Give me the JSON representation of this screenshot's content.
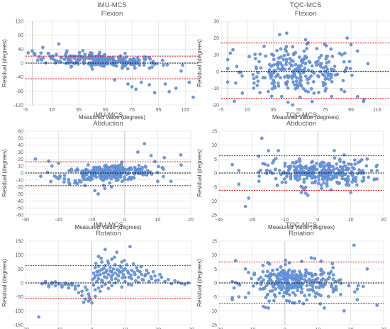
{
  "chart_data": [
    {
      "type": "scatter",
      "title": [
        "IMU-MCS",
        "Flexion"
      ],
      "xlabel": "Measured Value (degrees)",
      "ylabel": "Residual (degrees)",
      "xlim": [
        -5,
        125
      ],
      "ylim": [
        -120,
        120
      ],
      "xticks": [
        -5,
        15,
        35,
        55,
        75,
        95,
        115
      ],
      "yticks": [
        -120,
        -80,
        -40,
        0,
        40,
        80,
        120
      ],
      "mean_line": 0,
      "limits_of_agreement": [
        20,
        -45
      ],
      "cluster": {
        "x_center": 52,
        "x_spread": 22,
        "x_min": -3,
        "x_max": 122,
        "y_spread": 10,
        "y_slope": -0.18,
        "y_offset": 8,
        "n": 230
      },
      "points": [
        [
          0,
          35
        ],
        [
          2,
          25
        ],
        [
          5,
          18
        ],
        [
          8,
          45
        ],
        [
          20,
          55
        ],
        [
          12,
          28
        ],
        [
          25,
          22
        ],
        [
          45,
          28
        ],
        [
          72,
          -60
        ],
        [
          75,
          -68
        ],
        [
          78,
          -75
        ],
        [
          82,
          -55
        ],
        [
          88,
          -62
        ],
        [
          100,
          -60
        ],
        [
          103,
          -82
        ],
        [
          108,
          -72
        ],
        [
          118,
          -55
        ],
        [
          121,
          -98
        ],
        [
          62,
          -48
        ],
        [
          92,
          -85
        ]
      ]
    },
    {
      "type": "scatter",
      "title": [
        "TQC-MCS",
        "Flexion"
      ],
      "xlabel": "Measured Value (degrees)",
      "ylabel": "Residual (degrees)",
      "xlim": [
        -5,
        125
      ],
      "ylim": [
        -20,
        30
      ],
      "xticks": [
        -5,
        15,
        35,
        55,
        75,
        95,
        115
      ],
      "yticks": [
        -20,
        -10,
        0,
        10,
        20,
        30
      ],
      "mean_line": 0,
      "limits_of_agreement": [
        17,
        -16
      ],
      "cluster": {
        "x_center": 55,
        "x_spread": 22,
        "x_min": 0,
        "x_max": 112,
        "y_spread": 7,
        "y_slope": 0,
        "y_offset": 0,
        "n": 250
      },
      "points": [
        [
          2,
          11
        ],
        [
          4,
          13
        ],
        [
          7,
          3
        ],
        [
          40,
          22
        ],
        [
          92,
          20
        ],
        [
          95,
          16
        ],
        [
          60,
          19
        ],
        [
          28,
          15
        ],
        [
          80,
          -15
        ],
        [
          100,
          -15
        ],
        [
          105,
          -17
        ],
        [
          50,
          -20
        ],
        [
          65,
          -18
        ],
        [
          90,
          -12
        ],
        [
          20,
          -10
        ]
      ]
    },
    {
      "type": "scatter",
      "title": [
        "IMU-MCS",
        "Abduction"
      ],
      "xlabel": "Measured Value (degrees)",
      "ylabel": "Residual (degrees)",
      "xlim": [
        -30,
        20
      ],
      "ylim": [
        -60,
        60
      ],
      "xticks": [
        -30,
        -20,
        -10,
        0,
        10,
        20
      ],
      "yticks": [
        -60,
        -50,
        -40,
        -30,
        -20,
        -10,
        0,
        10,
        20,
        30,
        40,
        50,
        60
      ],
      "mean_line": 0,
      "limits_of_agreement": [
        16,
        -18
      ],
      "cluster": {
        "x_center": -5,
        "x_spread": 7,
        "x_min": -26,
        "x_max": 18,
        "y_spread": 6,
        "y_slope": 0.3,
        "y_offset": 0,
        "n": 260
      },
      "points": [
        [
          -27,
          20
        ],
        [
          -23,
          17
        ],
        [
          -20,
          14
        ],
        [
          -22,
          10
        ],
        [
          6,
          42
        ],
        [
          4,
          30
        ],
        [
          8,
          25
        ],
        [
          12,
          22
        ],
        [
          17,
          26
        ],
        [
          -8,
          -30
        ],
        [
          -6,
          -22
        ],
        [
          -12,
          -18
        ],
        [
          -4,
          -20
        ],
        [
          10,
          -12
        ],
        [
          14,
          -12
        ]
      ]
    },
    {
      "type": "scatter",
      "title": [
        "TQC-MCS",
        "Abduction"
      ],
      "xlabel": "Measured Value (degrees)",
      "ylabel": "Residual (degrees)",
      "xlim": [
        -30,
        20
      ],
      "ylim": [
        -15,
        15
      ],
      "xticks": [
        -30,
        -20,
        -10,
        0,
        10,
        20
      ],
      "yticks": [
        -15,
        -10,
        -5,
        0,
        5,
        10,
        15
      ],
      "mean_line": 0,
      "limits_of_agreement": [
        6.2,
        -6.2
      ],
      "cluster": {
        "x_center": 0,
        "x_spread": 8,
        "x_min": -26,
        "x_max": 18,
        "y_spread": 2.3,
        "y_slope": 0,
        "y_offset": 0,
        "n": 300
      },
      "points": [
        [
          -17,
          12.5
        ],
        [
          -22,
          -12
        ],
        [
          -21,
          -9
        ],
        [
          -26,
          3
        ],
        [
          -24,
          -4
        ],
        [
          -15,
          8
        ],
        [
          -12,
          8
        ],
        [
          -18,
          6
        ],
        [
          5,
          8
        ],
        [
          15,
          5
        ],
        [
          -5,
          -7
        ],
        [
          -3,
          -8
        ],
        [
          10,
          -7
        ],
        [
          8,
          6.5
        ]
      ]
    },
    {
      "type": "scatter",
      "title": [
        "IMU-MCS",
        "Rotation"
      ],
      "xlabel": "Measured Value (degrees)",
      "ylabel": "Residual (degrees)",
      "xlim": [
        -20,
        30
      ],
      "ylim": [
        -150,
        150
      ],
      "xticks": [
        -20,
        -10,
        0,
        10,
        20,
        30
      ],
      "yticks": [
        -150,
        -100,
        -50,
        0,
        50,
        100,
        150
      ],
      "mean_line": 0,
      "limits_of_agreement": [
        62,
        -55
      ],
      "points": [
        [
          -16,
          -122
        ],
        [
          -15,
          -3
        ],
        [
          -14,
          0
        ],
        [
          -13,
          -8
        ],
        [
          -12,
          -3
        ],
        [
          -11,
          -10
        ],
        [
          -10,
          -4
        ],
        [
          -9,
          -15
        ],
        [
          -8,
          -5
        ],
        [
          -7,
          -18
        ],
        [
          -6,
          -8
        ],
        [
          -5,
          -22
        ],
        [
          -4,
          -10
        ],
        [
          -3,
          -30
        ],
        [
          -2,
          -15
        ],
        [
          -1,
          -40
        ],
        [
          -0.5,
          -60
        ],
        [
          -2,
          -58
        ],
        [
          -1,
          -65
        ],
        [
          0,
          -72
        ],
        [
          -3,
          -45
        ],
        [
          -4,
          -35
        ],
        [
          -5,
          -12
        ],
        [
          -6,
          -2
        ],
        [
          -7,
          -6
        ],
        [
          -8,
          -1
        ],
        [
          -9,
          -9
        ],
        [
          -10,
          -2
        ],
        [
          -11,
          4
        ],
        [
          -12,
          2
        ],
        [
          -13,
          -14
        ],
        [
          -14,
          5
        ],
        [
          -1.5,
          -25
        ],
        [
          -0.8,
          -50
        ],
        [
          -2.5,
          -70
        ],
        [
          1,
          25
        ],
        [
          1,
          55
        ],
        [
          1.5,
          40
        ],
        [
          2,
          60
        ],
        [
          2,
          95
        ],
        [
          2.5,
          30
        ],
        [
          3,
          48
        ],
        [
          3,
          75
        ],
        [
          3.5,
          35
        ],
        [
          4,
          62
        ],
        [
          4,
          120
        ],
        [
          4.5,
          45
        ],
        [
          5,
          30
        ],
        [
          5,
          70
        ],
        [
          5.5,
          55
        ],
        [
          6,
          40
        ],
        [
          6,
          85
        ],
        [
          6.5,
          50
        ],
        [
          7,
          35
        ],
        [
          7,
          65
        ],
        [
          7.5,
          110
        ],
        [
          8,
          45
        ],
        [
          8,
          25
        ],
        [
          8.5,
          60
        ],
        [
          9,
          40
        ],
        [
          9,
          75
        ],
        [
          9.5,
          30
        ],
        [
          10,
          50
        ],
        [
          10,
          20
        ],
        [
          10.5,
          65
        ],
        [
          11,
          35
        ],
        [
          11.5,
          130
        ],
        [
          12,
          45
        ],
        [
          12,
          15
        ],
        [
          13,
          30
        ],
        [
          13.5,
          55
        ],
        [
          14,
          20
        ],
        [
          14.5,
          40
        ],
        [
          15,
          30
        ],
        [
          15.5,
          10
        ],
        [
          16,
          25
        ],
        [
          17,
          35
        ],
        [
          18,
          15
        ],
        [
          19,
          25
        ],
        [
          20,
          10
        ],
        [
          21,
          20
        ],
        [
          0.5,
          35
        ],
        [
          1.2,
          70
        ],
        [
          2.8,
          88
        ],
        [
          3.8,
          22
        ],
        [
          4.8,
          78
        ],
        [
          5.8,
          22
        ],
        [
          6.8,
          92
        ],
        [
          7.8,
          28
        ],
        [
          8.8,
          55
        ],
        [
          9.8,
          80
        ],
        [
          12.5,
          68
        ],
        [
          14.8,
          58
        ],
        [
          16.5,
          45
        ],
        [
          18.5,
          40
        ],
        [
          1,
          -25
        ],
        [
          2,
          -18
        ],
        [
          3,
          -12
        ],
        [
          4,
          -5
        ],
        [
          0.5,
          -8
        ],
        [
          1.5,
          5
        ],
        [
          2.5,
          -30
        ],
        [
          5,
          -20
        ],
        [
          6,
          -10
        ],
        [
          7,
          0
        ],
        [
          9,
          -15
        ],
        [
          11,
          -5
        ],
        [
          1,
          -48
        ],
        [
          3,
          10
        ],
        [
          4.5,
          18
        ],
        [
          29,
          0
        ],
        [
          28,
          -5
        ],
        [
          27,
          -2
        ],
        [
          26,
          3
        ],
        [
          22,
          5
        ],
        [
          23,
          12
        ],
        [
          24,
          -3
        ],
        [
          25,
          8
        ],
        [
          6,
          12
        ],
        [
          8,
          8
        ],
        [
          10,
          5
        ],
        [
          12,
          -8
        ],
        [
          14,
          2
        ],
        [
          2,
          15
        ],
        [
          3.2,
          5
        ],
        [
          5.2,
          3
        ],
        [
          7.2,
          15
        ],
        [
          9.2,
          18
        ],
        [
          11.2,
          20
        ],
        [
          13.2,
          8
        ],
        [
          15.2,
          12
        ],
        [
          17.2,
          5
        ],
        [
          19.2,
          8
        ],
        [
          0.2,
          12
        ],
        [
          0.8,
          18
        ],
        [
          1.8,
          28
        ],
        [
          2.2,
          42
        ],
        [
          3.6,
          52
        ],
        [
          4.2,
          38
        ],
        [
          5.6,
          42
        ],
        [
          6.2,
          28
        ],
        [
          7.6,
          48
        ],
        [
          8.4,
          38
        ],
        [
          9.6,
          46
        ],
        [
          10.8,
          42
        ],
        [
          11.8,
          28
        ],
        [
          12.8,
          38
        ],
        [
          13.8,
          44
        ],
        [
          16.2,
          30
        ],
        [
          17.8,
          22
        ],
        [
          20.5,
          30
        ]
      ]
    },
    {
      "type": "scatter",
      "title": [
        "TQC-MCS",
        "Rotation"
      ],
      "xlabel": "Measured Value (degrees)",
      "ylabel": "Residual (degrees)",
      "xlim": [
        -20,
        30
      ],
      "ylim": [
        -15,
        15
      ],
      "xticks": [
        -20,
        -10,
        0,
        10,
        20,
        30
      ],
      "yticks": [
        -15,
        -10,
        -5,
        0,
        5,
        10,
        15
      ],
      "mean_line": 0,
      "limits_of_agreement": [
        7.5,
        -7.5
      ],
      "cluster": {
        "x_center": 3,
        "x_spread": 7,
        "x_min": -16,
        "x_max": 29,
        "y_spread": 3,
        "y_slope": 0,
        "y_offset": 0,
        "n": 300
      },
      "points": [
        [
          21,
          13.5
        ],
        [
          -15,
          8
        ],
        [
          -16,
          -6
        ],
        [
          -14,
          -5
        ],
        [
          -12,
          5
        ],
        [
          18,
          -10
        ],
        [
          28,
          -8
        ],
        [
          25,
          5
        ],
        [
          22,
          -6
        ],
        [
          8,
          9
        ],
        [
          -5,
          -9
        ],
        [
          12,
          -9
        ]
      ]
    }
  ]
}
